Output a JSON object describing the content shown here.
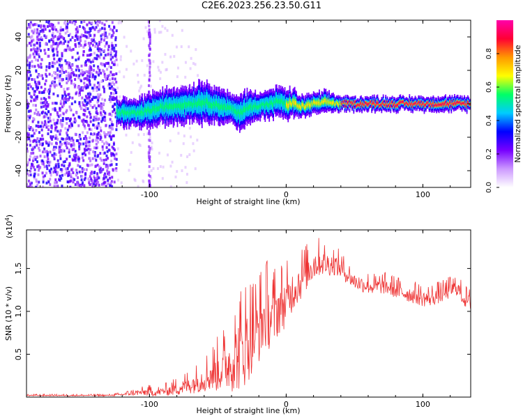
{
  "title": "C2E6.2023.256.23.50.G11",
  "chart_data": [
    {
      "type": "heatmap",
      "xlabel": "Height of straight line (km)",
      "ylabel": "Frequency (Hz)",
      "xlim": [
        -190,
        135
      ],
      "ylim": [
        -50,
        50
      ],
      "x_ticks": [
        -100,
        0,
        100
      ],
      "x_tick_labels": [
        "-100",
        "0",
        "100"
      ],
      "y_ticks": [
        -40,
        -20,
        0,
        20,
        40
      ],
      "y_tick_labels": [
        "-40",
        "-20",
        "0",
        "20",
        "40"
      ],
      "noise_region_x": [
        -190,
        -124
      ],
      "spike_x": -100,
      "ridge": {
        "x": [
          -124,
          -110,
          -100,
          -90,
          -80,
          -70,
          -60,
          -50,
          -40,
          -35,
          -30,
          -20,
          -10,
          -5,
          0,
          5,
          10,
          20,
          30,
          40,
          50,
          60,
          70,
          80,
          90,
          100,
          110,
          120,
          135
        ],
        "frequency_hz": [
          -5,
          -6,
          -4,
          -2,
          -1,
          0,
          1,
          -1,
          -3,
          -6,
          -3,
          -1,
          0,
          2,
          -1,
          1,
          -2,
          0,
          1,
          0,
          0,
          0,
          0,
          0,
          0,
          0,
          0,
          0,
          0
        ],
        "halfwidth_hz": [
          4,
          4,
          5,
          5,
          5,
          5,
          6,
          5,
          4,
          5,
          5,
          4,
          4,
          4,
          4,
          4,
          3,
          3,
          3,
          2,
          2,
          2,
          2,
          2,
          2,
          2,
          2,
          2,
          2
        ]
      },
      "colorbar": {
        "label": "Normalized spectral amplitude",
        "range": [
          0,
          1
        ],
        "ticks": [
          0,
          0.2,
          0.4,
          0.6,
          0.8
        ],
        "tick_labels": [
          "0.0",
          "0.2",
          "0.4",
          "0.6",
          "0.8"
        ],
        "colors": [
          "#ffffff",
          "#cc99ff",
          "#7700ff",
          "#0000ff",
          "#00ccff",
          "#00ff66",
          "#ffff00",
          "#ff9900",
          "#ff0033",
          "#ff00aa"
        ]
      }
    },
    {
      "type": "line",
      "xlabel": "Height of straight line (km)",
      "ylabel": "SNR (10 * v/v)",
      "y_multiplier_label": "(x10",
      "y_multiplier_exp": "4",
      "y_multiplier_close": ")",
      "xlim": [
        -190,
        135
      ],
      "ylim": [
        0,
        1.95
      ],
      "x_ticks": [
        -100,
        0,
        100
      ],
      "x_tick_labels": [
        "-100",
        "0",
        "100"
      ],
      "y_ticks": [
        0.5,
        1.0,
        1.5
      ],
      "y_tick_labels": [
        "0.5",
        "1.0",
        "1.5"
      ],
      "color": "#ee3333",
      "series": [
        {
          "x": [
            -190,
            -170,
            -150,
            -130,
            -120,
            -110,
            -100,
            -95,
            -90,
            -85,
            -80,
            -75,
            -70,
            -65,
            -60,
            -55,
            -50,
            -45,
            -40,
            -35,
            -30,
            -25,
            -20,
            -15,
            -10,
            -5,
            0,
            5,
            10,
            15,
            20,
            25,
            30,
            35,
            40,
            45,
            50,
            55,
            60,
            65,
            70,
            75,
            80,
            85,
            90,
            95,
            100,
            105,
            110,
            115,
            120,
            125,
            130,
            135
          ],
          "values": [
            0.02,
            0.02,
            0.02,
            0.02,
            0.03,
            0.05,
            0.06,
            0.05,
            0.07,
            0.08,
            0.1,
            0.12,
            0.15,
            0.18,
            0.22,
            0.26,
            0.3,
            0.36,
            0.42,
            0.5,
            0.6,
            0.7,
            0.8,
            0.95,
            0.92,
            1.05,
            1.1,
            1.25,
            1.35,
            1.45,
            1.55,
            1.58,
            1.55,
            1.55,
            1.5,
            1.42,
            1.35,
            1.32,
            1.3,
            1.28,
            1.3,
            1.28,
            1.25,
            1.22,
            1.2,
            1.18,
            1.15,
            1.15,
            1.18,
            1.2,
            1.25,
            1.28,
            1.15,
            1.1
          ],
          "noise_amplitude": [
            0.01,
            0.01,
            0.01,
            0.01,
            0.02,
            0.04,
            0.06,
            0.05,
            0.06,
            0.08,
            0.1,
            0.12,
            0.14,
            0.16,
            0.2,
            0.25,
            0.3,
            0.35,
            0.45,
            0.55,
            0.6,
            0.55,
            0.5,
            0.5,
            0.45,
            0.4,
            0.35,
            0.3,
            0.3,
            0.25,
            0.25,
            0.2,
            0.18,
            0.16,
            0.15,
            0.12,
            0.12,
            0.12,
            0.12,
            0.12,
            0.12,
            0.12,
            0.12,
            0.12,
            0.12,
            0.12,
            0.12,
            0.12,
            0.12,
            0.12,
            0.12,
            0.12,
            0.12,
            0.12
          ]
        }
      ]
    }
  ]
}
